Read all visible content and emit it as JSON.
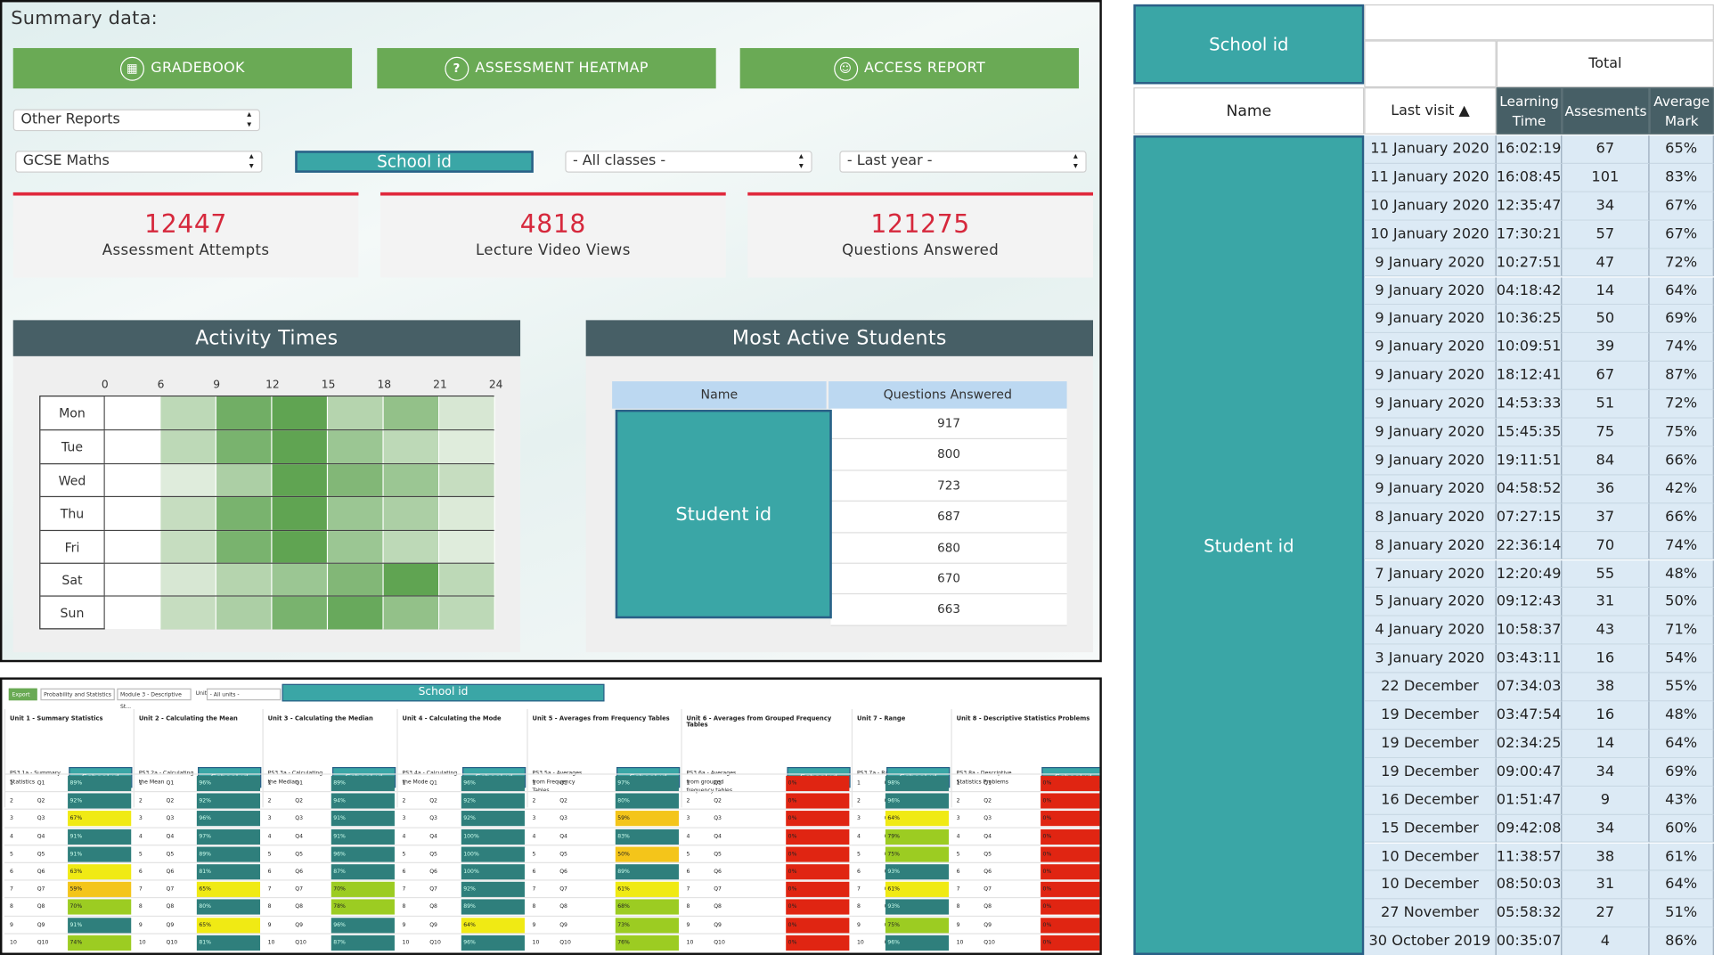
{
  "summary": {
    "title": "Summary data:",
    "buttons": {
      "gradebook": "GRADEBOOK",
      "heatmap": "ASSESSMENT HEATMAP",
      "access": "ACCESS REPORT"
    },
    "filters": {
      "other_reports": "Other Reports",
      "course": "GCSE Maths",
      "school": "School id",
      "classes": "- All classes -",
      "period": "- Last year -"
    },
    "stats": [
      {
        "value": "12447",
        "label": "Assessment Attempts"
      },
      {
        "value": "4818",
        "label": "Lecture Video Views"
      },
      {
        "value": "121275",
        "label": "Questions Answered"
      }
    ],
    "activity": {
      "title": "Activity Times",
      "hours": [
        "0",
        "6",
        "9",
        "12",
        "15",
        "18",
        "21",
        "24"
      ],
      "days": [
        "Mon",
        "Tue",
        "Wed",
        "Thu",
        "Fri",
        "Sat",
        "Sun"
      ],
      "intensity": [
        [
          0,
          0.3,
          0.75,
          0.85,
          0.35,
          0.55,
          0.15
        ],
        [
          0,
          0.3,
          0.7,
          0.85,
          0.5,
          0.3,
          0.1
        ],
        [
          0,
          0.1,
          0.4,
          0.85,
          0.65,
          0.5,
          0.25
        ],
        [
          0,
          0.25,
          0.7,
          0.85,
          0.5,
          0.4,
          0.12
        ],
        [
          0,
          0.25,
          0.7,
          0.85,
          0.5,
          0.3,
          0.1
        ],
        [
          0,
          0.15,
          0.35,
          0.5,
          0.65,
          0.85,
          0.3
        ],
        [
          0,
          0.25,
          0.4,
          0.7,
          0.8,
          0.55,
          0.3
        ]
      ]
    },
    "most_active": {
      "title": "Most Active Students",
      "headers": [
        "Name",
        "Questions Answered"
      ],
      "student_label": "Student id",
      "values": [
        "917",
        "800",
        "723",
        "687",
        "680",
        "670",
        "663"
      ]
    }
  },
  "gradebook": {
    "export": "Export",
    "category": "Probability and Statistics",
    "module": "Module 3 - Descriptive St...",
    "unit_label": "Unit:",
    "unit_select": "- All units -",
    "school": "School id",
    "units": [
      {
        "title": "Unit 1 - Summary Statistics",
        "q": "PS3.1a - Summary Statistics",
        "marks": [
          "89%",
          "92%",
          "67%",
          "91%",
          "91%",
          "63%",
          "59%",
          "70%",
          "91%",
          "74%"
        ]
      },
      {
        "title": "Unit 2 - Calculating the Mean",
        "q": "PS3.2a - Calculating the Mean",
        "marks": [
          "96%",
          "92%",
          "96%",
          "97%",
          "89%",
          "81%",
          "65%",
          "80%",
          "65%",
          "81%"
        ]
      },
      {
        "title": "Unit 3 - Calculating the Median",
        "q": "PS3.3a - Calculating the Median",
        "marks": [
          "89%",
          "94%",
          "91%",
          "91%",
          "96%",
          "87%",
          "70%",
          "78%",
          "96%",
          "87%"
        ]
      },
      {
        "title": "Unit 4 - Calculating the Mode",
        "q": "PS3.4a - Calculating the Mode",
        "marks": [
          "96%",
          "92%",
          "92%",
          "100%",
          "100%",
          "100%",
          "92%",
          "89%",
          "64%",
          "96%"
        ]
      },
      {
        "title": "Unit 5 - Averages from Frequency Tables",
        "q": "PS3.5a - Averages from Frequency Tables",
        "marks": [
          "97%",
          "80%",
          "59%",
          "83%",
          "50%",
          "89%",
          "61%",
          "68%",
          "73%",
          "76%"
        ]
      },
      {
        "title": "Unit 6 - Averages from Grouped Frequency Tables",
        "q": "PS3.6a - Averages from grouped frequency tables",
        "marks": [
          "0%",
          "0%",
          "0%",
          "0%",
          "0%",
          "0%",
          "0%",
          "0%",
          "0%",
          "0%"
        ]
      },
      {
        "title": "Unit 7 - Range",
        "q": "PS3.7a - Range",
        "marks": [
          "98%",
          "96%",
          "64%",
          "79%",
          "75%",
          "93%",
          "61%",
          "93%",
          "75%",
          "96%"
        ]
      },
      {
        "title": "Unit 8 - Descriptive Statistics Problems",
        "q": "PS3.8a - Descriptive Statistics Problems",
        "marks": [
          "0%",
          "0%",
          "0%",
          "0%",
          "0%",
          "0%",
          "0%",
          "0%",
          "0%",
          "0%"
        ]
      }
    ],
    "row_ids": [
      "1",
      "2",
      "3",
      "4",
      "5",
      "6",
      "7",
      "8",
      "9",
      "10"
    ],
    "row_qs": [
      "Q1",
      "Q2",
      "Q3",
      "Q4",
      "Q5",
      "Q6",
      "Q7",
      "Q8",
      "Q9",
      "Q10"
    ]
  },
  "detail": {
    "school": "School id",
    "total": "Total",
    "headers": {
      "name": "Name",
      "last_visit": "Last visit ▲",
      "learning_time": "Learning Time",
      "assessments": "Assesments",
      "average_mark": "Average Mark"
    },
    "student_label": "Student id",
    "rows": [
      [
        "11 January 2020",
        "16:02:19",
        "67",
        "65%"
      ],
      [
        "11 January 2020",
        "16:08:45",
        "101",
        "83%"
      ],
      [
        "10 January 2020",
        "12:35:47",
        "34",
        "67%"
      ],
      [
        "10 January 2020",
        "17:30:21",
        "57",
        "67%"
      ],
      [
        "9 January 2020",
        "10:27:51",
        "47",
        "72%"
      ],
      [
        "9 January 2020",
        "04:18:42",
        "14",
        "64%"
      ],
      [
        "9 January 2020",
        "10:36:25",
        "50",
        "69%"
      ],
      [
        "9 January 2020",
        "10:09:51",
        "39",
        "74%"
      ],
      [
        "9 January 2020",
        "18:12:41",
        "67",
        "87%"
      ],
      [
        "9 January 2020",
        "14:53:33",
        "51",
        "72%"
      ],
      [
        "9 January 2020",
        "15:45:35",
        "75",
        "75%"
      ],
      [
        "9 January 2020",
        "19:11:51",
        "84",
        "66%"
      ],
      [
        "9 January 2020",
        "04:58:52",
        "36",
        "42%"
      ],
      [
        "8 January 2020",
        "07:27:15",
        "37",
        "66%"
      ],
      [
        "8 January 2020",
        "22:36:14",
        "70",
        "74%"
      ],
      [
        "7 January 2020",
        "12:20:49",
        "55",
        "48%"
      ],
      [
        "5 January 2020",
        "09:12:43",
        "31",
        "50%"
      ],
      [
        "4 January 2020",
        "10:58:37",
        "43",
        "71%"
      ],
      [
        "3 January 2020",
        "03:43:11",
        "16",
        "54%"
      ],
      [
        "22 December 2019",
        "07:34:03",
        "38",
        "55%"
      ],
      [
        "19 December 2019",
        "03:47:54",
        "16",
        "48%"
      ],
      [
        "19 December 2019",
        "02:34:25",
        "14",
        "64%"
      ],
      [
        "19 December 2019",
        "09:00:47",
        "34",
        "69%"
      ],
      [
        "16 December 2019",
        "01:51:47",
        "9",
        "43%"
      ],
      [
        "15 December 2019",
        "09:42:08",
        "34",
        "60%"
      ],
      [
        "10 December 2019",
        "11:38:57",
        "38",
        "61%"
      ],
      [
        "10 December 2019",
        "08:50:03",
        "31",
        "64%"
      ],
      [
        "27 November 2019",
        "05:58:32",
        "27",
        "51%"
      ],
      [
        "30 October 2019",
        "00:35:07",
        "4",
        "86%"
      ]
    ]
  }
}
